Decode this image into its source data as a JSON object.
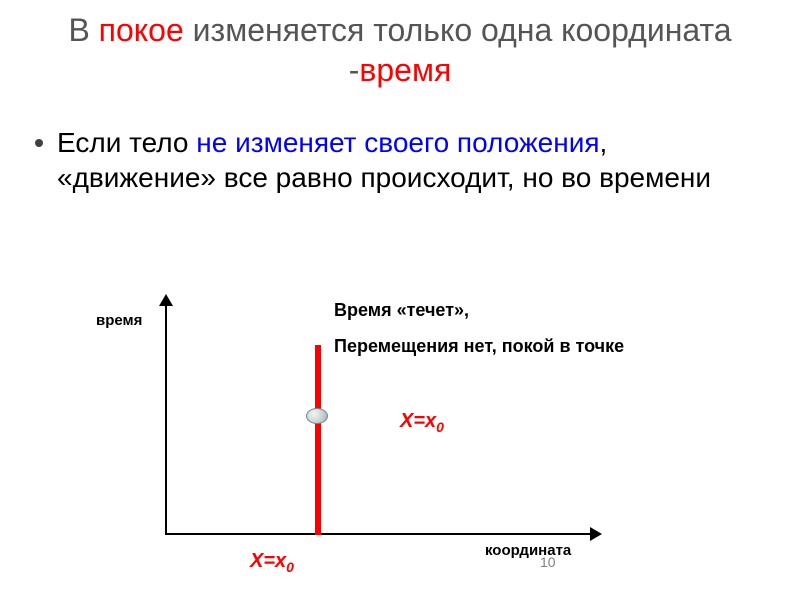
{
  "title": {
    "part1": "В ",
    "red1": "покое",
    "part2": " изменяется только одна координата -",
    "red2": "время"
  },
  "bullet": {
    "part1": "Если тело ",
    "blue1": "не изменяет своего положения",
    "part2": ", «движение» все равно происходит, но во времени"
  },
  "chart": {
    "y_label": "время",
    "x_label": "координата",
    "annotation1": "Время «течет»,",
    "annotation2": "Перемещения нет, покой в точке",
    "formula_top": "X=x",
    "formula_top_sub": "0",
    "formula_bottom": "X=x",
    "formula_bottom_sub": "0",
    "line_color": "#ff0000",
    "axis_color": "#000000",
    "background": "#ffffff"
  },
  "slide_number": "10"
}
